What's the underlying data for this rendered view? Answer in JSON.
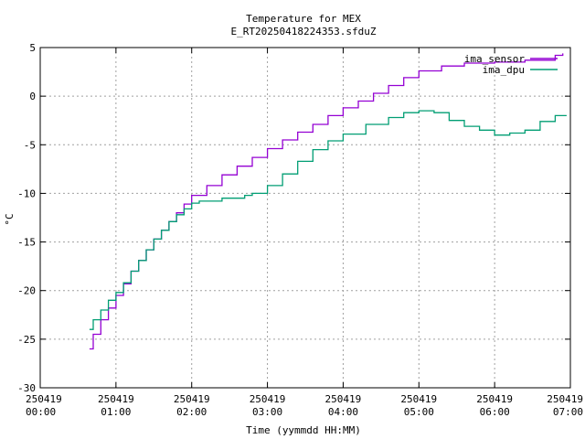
{
  "chart_data": {
    "type": "line",
    "title": "Temperature for MEX",
    "subtitle": "E_RT20250418224353.sfduZ",
    "xlabel": "Time (yymmdd HH:MM)",
    "ylabel": "°C",
    "xlim": [
      0,
      7
    ],
    "ylim": [
      -30,
      5
    ],
    "grid": true,
    "legend_position": "top-right",
    "x_ticks": [
      {
        "value": 0,
        "date": "250419",
        "time": "00:00"
      },
      {
        "value": 1,
        "date": "250419",
        "time": "01:00"
      },
      {
        "value": 2,
        "date": "250419",
        "time": "02:00"
      },
      {
        "value": 3,
        "date": "250419",
        "time": "03:00"
      },
      {
        "value": 4,
        "date": "250419",
        "time": "04:00"
      },
      {
        "value": 5,
        "date": "250419",
        "time": "05:00"
      },
      {
        "value": 6,
        "date": "250419",
        "time": "06:00"
      },
      {
        "value": 7,
        "date": "250419",
        "time": "07:00"
      }
    ],
    "y_ticks": [
      -30,
      -25,
      -20,
      -15,
      -10,
      -5,
      0,
      5
    ],
    "series": [
      {
        "name": "ima_sensor",
        "color": "#9400d3",
        "x": [
          0.65,
          0.7,
          0.8,
          0.9,
          1.0,
          1.1,
          1.2,
          1.3,
          1.4,
          1.5,
          1.6,
          1.7,
          1.8,
          1.9,
          2.0,
          2.2,
          2.4,
          2.6,
          2.8,
          3.0,
          3.2,
          3.4,
          3.6,
          3.8,
          4.0,
          4.2,
          4.4,
          4.6,
          4.8,
          5.0,
          5.3,
          5.6,
          6.0,
          6.4,
          6.8,
          6.9
        ],
        "y": [
          -26.0,
          -24.5,
          -23.0,
          -21.8,
          -20.5,
          -19.3,
          -18.0,
          -16.9,
          -15.8,
          -14.7,
          -13.8,
          -12.9,
          -12.0,
          -11.1,
          -10.2,
          -9.2,
          -8.1,
          -7.2,
          -6.3,
          -5.4,
          -4.5,
          -3.7,
          -2.9,
          -2.0,
          -1.2,
          -0.5,
          0.3,
          1.1,
          1.9,
          2.6,
          3.1,
          3.4,
          3.5,
          3.7,
          4.2,
          4.4
        ]
      },
      {
        "name": "ima_dpu",
        "color": "#009e73",
        "x": [
          0.65,
          0.7,
          0.8,
          0.9,
          1.0,
          1.1,
          1.2,
          1.3,
          1.4,
          1.5,
          1.6,
          1.7,
          1.8,
          1.9,
          2.0,
          2.1,
          2.4,
          2.7,
          2.8,
          3.0,
          3.2,
          3.4,
          3.6,
          3.8,
          4.0,
          4.3,
          4.6,
          4.8,
          5.0,
          5.2,
          5.4,
          5.6,
          5.8,
          6.0,
          6.2,
          6.4,
          6.6,
          6.8,
          6.95
        ],
        "y": [
          -24.0,
          -23.0,
          -22.0,
          -21.0,
          -20.2,
          -19.2,
          -18.0,
          -16.9,
          -15.8,
          -14.7,
          -13.8,
          -12.9,
          -12.2,
          -11.6,
          -11.0,
          -10.8,
          -10.5,
          -10.2,
          -10.0,
          -9.2,
          -8.0,
          -6.7,
          -5.5,
          -4.6,
          -3.9,
          -2.9,
          -2.2,
          -1.7,
          -1.5,
          -1.7,
          -2.5,
          -3.1,
          -3.5,
          -4.0,
          -3.8,
          -3.5,
          -2.6,
          -2.0,
          -2.0
        ]
      }
    ]
  }
}
